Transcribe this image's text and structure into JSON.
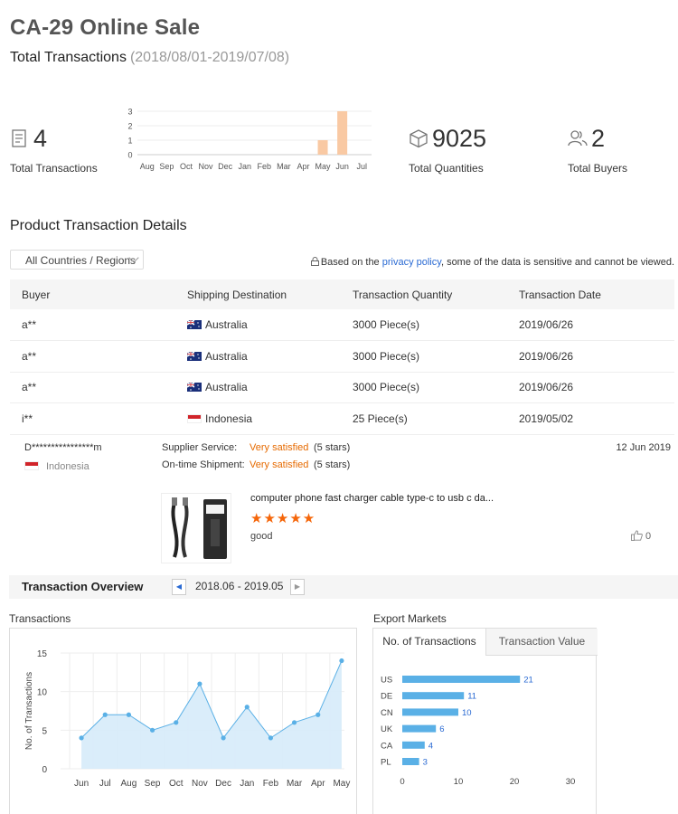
{
  "header": {
    "title": "CA-29 Online Sale",
    "subtitle": "Total Transactions",
    "date_range": "(2018/08/01-2019/07/08)"
  },
  "stats": {
    "transactions": {
      "value": "4",
      "label": "Total Transactions",
      "icon": "document-icon"
    },
    "quantities": {
      "value": "9025",
      "label": "Total Quantities",
      "icon": "box-icon"
    },
    "buyers": {
      "value": "2",
      "label": "Total Buyers",
      "icon": "users-icon"
    }
  },
  "product_details": {
    "title": "Product Transaction Details",
    "region_select": "All Countries / Regions",
    "privacy_prefix": "Based on the ",
    "privacy_link": "privacy policy",
    "privacy_suffix": ", some of the data is sensitive and cannot be viewed.",
    "columns": [
      "Buyer",
      "Shipping Destination",
      "Transaction Quantity",
      "Transaction Date"
    ],
    "rows": [
      {
        "buyer": "a**",
        "country": "Australia",
        "flag": "au",
        "qty": "3000 Piece(s)",
        "date": "2019/06/26"
      },
      {
        "buyer": "a**",
        "country": "Australia",
        "flag": "au",
        "qty": "3000 Piece(s)",
        "date": "2019/06/26"
      },
      {
        "buyer": "a**",
        "country": "Australia",
        "flag": "au",
        "qty": "3000 Piece(s)",
        "date": "2019/06/26"
      },
      {
        "buyer": "i**",
        "country": "Indonesia",
        "flag": "id",
        "qty": "25 Piece(s)",
        "date": "2019/05/02"
      }
    ]
  },
  "review": {
    "reviewer": "D****************m",
    "country": "Indonesia",
    "supplier_service_label": "Supplier Service:",
    "supplier_service_value": "Very satisfied",
    "supplier_service_stars": "(5 stars)",
    "shipment_label": "On-time Shipment:",
    "shipment_value": "Very satisfied",
    "shipment_stars": "(5 stars)",
    "date": "12 Jun 2019",
    "product_title": "computer phone fast charger cable type-c to usb c da...",
    "stars": "★★★★★",
    "rating": 5,
    "text": "good",
    "likes": "0"
  },
  "overview": {
    "title": "Transaction Overview",
    "period": "2018.06 - 2019.05",
    "prev_icon": "caret-left-icon",
    "next_icon": "caret-right-icon"
  },
  "transactions_panel": {
    "label": "Transactions"
  },
  "export_panel": {
    "label": "Export Markets",
    "tab_active": "No. of Transactions",
    "tab_inactive": "Transaction Value"
  },
  "colors": {
    "accent": "#2a6ad3",
    "orange": "#e66a00",
    "bar_orange": "#f9c9a3",
    "bar_blue": "#5ab0e6",
    "area_blue": "#d6ebfa"
  },
  "chart_data": [
    {
      "type": "bar",
      "categories": [
        "Aug",
        "Sep",
        "Oct",
        "Nov",
        "Dec",
        "Jan",
        "Feb",
        "Mar",
        "Apr",
        "May",
        "Jun",
        "Jul"
      ],
      "values": [
        0,
        0,
        0,
        0,
        0,
        0,
        0,
        0,
        0,
        1,
        3,
        0
      ],
      "yticks": [
        0,
        1,
        2,
        3
      ],
      "ylim": [
        0,
        3
      ]
    },
    {
      "type": "area",
      "categories": [
        "Jun",
        "Jul",
        "Aug",
        "Sep",
        "Oct",
        "Nov",
        "Dec",
        "Jan",
        "Feb",
        "Mar",
        "Apr",
        "May"
      ],
      "values": [
        4,
        7,
        7,
        5,
        6,
        11,
        4,
        8,
        4,
        6,
        7,
        14
      ],
      "ylabel": "No. of Transactions",
      "yticks": [
        0,
        5,
        10,
        15
      ],
      "ylim": [
        0,
        15
      ],
      "grid": true
    },
    {
      "type": "bar",
      "orientation": "horizontal",
      "categories": [
        "US",
        "DE",
        "CN",
        "UK",
        "CA",
        "PL"
      ],
      "values": [
        21,
        11,
        10,
        6,
        4,
        3
      ],
      "xticks": [
        0,
        10,
        20,
        30
      ],
      "xlim": [
        0,
        30
      ]
    }
  ]
}
